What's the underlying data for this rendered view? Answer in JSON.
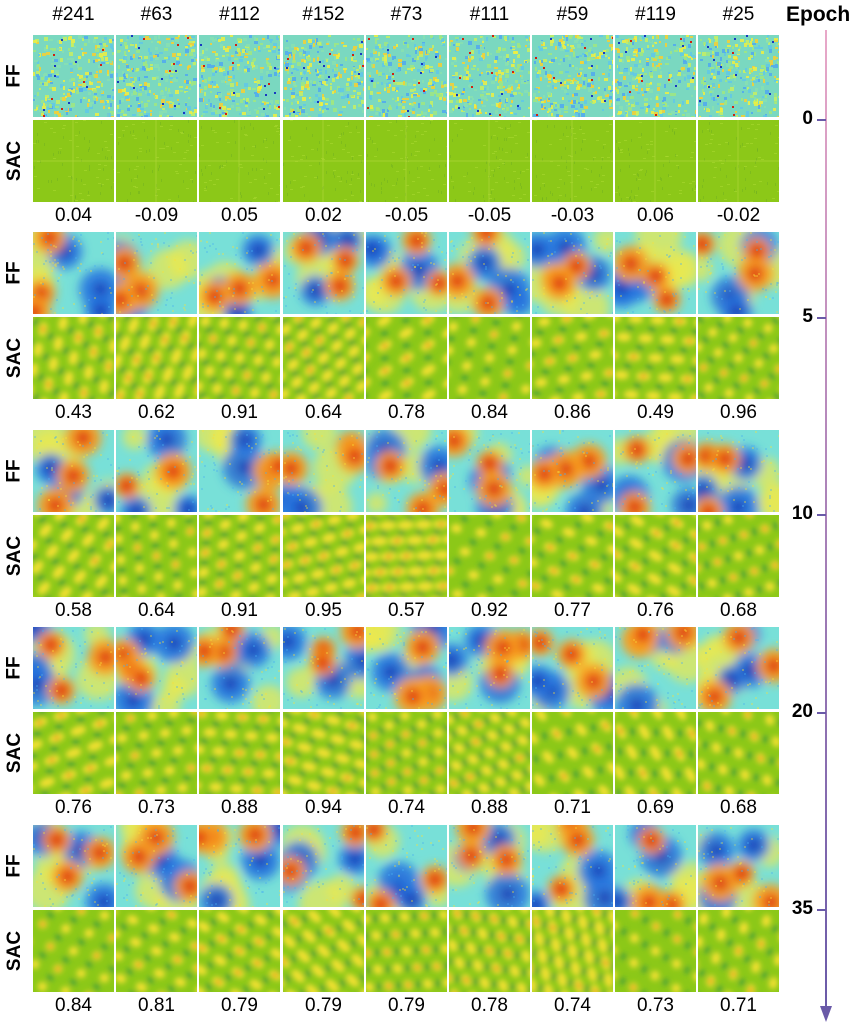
{
  "columns": [
    "#241",
    "#63",
    "#112",
    "#152",
    "#73",
    "#111",
    "#59",
    "#119",
    "#25"
  ],
  "row_labels": {
    "ff": "FF",
    "sac": "SAC"
  },
  "epoch_axis": {
    "title": "Epoch",
    "ticks": [
      "0",
      "5",
      "10",
      "20",
      "35"
    ],
    "gradient_colors": [
      "#e8a8c8",
      "#6a5aa8"
    ]
  },
  "epochs": [
    {
      "epoch": "0",
      "scores": [
        "0.04",
        "-0.09",
        "0.05",
        "0.02",
        "-0.05",
        "-0.05",
        "-0.03",
        "0.06",
        "-0.02"
      ]
    },
    {
      "epoch": "5",
      "scores": [
        "0.43",
        "0.62",
        "0.91",
        "0.64",
        "0.78",
        "0.84",
        "0.86",
        "0.49",
        "0.96"
      ]
    },
    {
      "epoch": "10",
      "scores": [
        "0.58",
        "0.64",
        "0.91",
        "0.95",
        "0.57",
        "0.92",
        "0.77",
        "0.76",
        "0.68"
      ]
    },
    {
      "epoch": "20",
      "scores": [
        "0.76",
        "0.73",
        "0.88",
        "0.94",
        "0.74",
        "0.88",
        "0.71",
        "0.69",
        "0.68"
      ]
    },
    {
      "epoch": "35",
      "scores": [
        "0.84",
        "0.81",
        "0.79",
        "0.79",
        "0.79",
        "0.78",
        "0.74",
        "0.73",
        "0.71"
      ]
    }
  ],
  "colormap": {
    "ff_blobs": [
      "#b01010",
      "#e83018",
      "#f8a020",
      "#f8e838",
      "#5ad8e8",
      "#2878e0",
      "#1830b0"
    ],
    "ff_base": "#78e0d8",
    "sac_base": "#8cc818",
    "sac_peak": "#f0e030",
    "sac_hot": "#e86018",
    "sac_trough": "#2a8a4a",
    "noise_low": "#50b8f0",
    "noise_high": "#f8f040"
  }
}
